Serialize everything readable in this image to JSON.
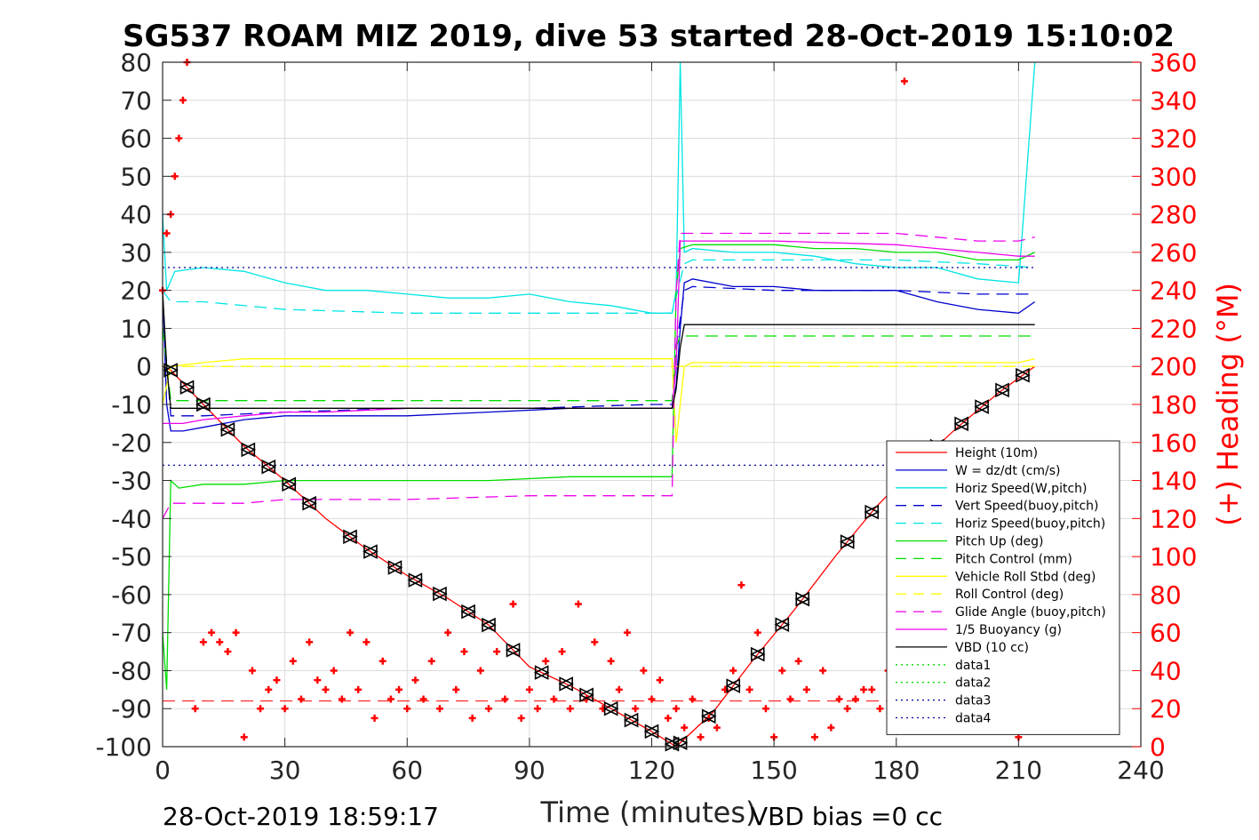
{
  "chart_data": {
    "type": "line",
    "title": "SG537 ROAM MIZ 2019, dive 53 started 28-Oct-2019 15:10:02",
    "xlabel": "Time (minutes)",
    "ylabel": "",
    "ylabel_right": "(+) Heading (°M)",
    "xlim": [
      0,
      240
    ],
    "ylim": [
      -100,
      80
    ],
    "ylim_right": [
      0,
      360
    ],
    "xticks": [
      "0",
      "30",
      "60",
      "90",
      "120",
      "150",
      "180",
      "210",
      "240"
    ],
    "yticks": [
      "80",
      "70",
      "60",
      "50",
      "40",
      "30",
      "20",
      "10",
      "0",
      "-10",
      "-20",
      "-30",
      "-40",
      "-50",
      "-60",
      "-70",
      "-80",
      "-90",
      "-100"
    ],
    "yticks_right": [
      "360",
      "340",
      "320",
      "300",
      "280",
      "260",
      "240",
      "220",
      "200",
      "180",
      "160",
      "140",
      "120",
      "100",
      "80",
      "60",
      "40",
      "20",
      "0"
    ],
    "grid": true,
    "legend_position": "lower-right",
    "footer_left": "28-Oct-2019 18:59:17",
    "footer_right": "VBD bias =0 cc",
    "colors": {
      "red": "#ff0000",
      "blue": "#0000cc",
      "cyan": "#00e5e5",
      "green": "#00dd00",
      "yellow": "#ffff00",
      "magenta": "#ee00ee",
      "black": "#000000",
      "navy": "#000099"
    },
    "series": [
      {
        "name": "Height (10m)",
        "color": "#ff0000",
        "style": "solid",
        "x": [
          0,
          2,
          10,
          20,
          30,
          40,
          50,
          60,
          70,
          80,
          90,
          100,
          110,
          120,
          126,
          135,
          145,
          155,
          165,
          175,
          185,
          195,
          205,
          214
        ],
        "y": [
          0,
          -1,
          -10,
          -21,
          -30,
          -40,
          -48,
          -55,
          -61,
          -68,
          -79,
          -84,
          -90,
          -96,
          -100,
          -91,
          -77,
          -64,
          -50,
          -37,
          -26,
          -16,
          -7,
          0
        ]
      },
      {
        "name": "W = dz/dt (cm/s)",
        "color": "#0000cc",
        "style": "solid",
        "x": [
          0,
          1,
          2,
          5,
          10,
          20,
          30,
          40,
          60,
          80,
          100,
          120,
          125,
          126,
          127,
          128,
          130,
          140,
          150,
          160,
          170,
          180,
          190,
          200,
          210,
          214
        ],
        "y": [
          20,
          -10,
          -17,
          -17,
          -16,
          -14,
          -13,
          -13,
          -13,
          -12,
          -11,
          -11,
          -11,
          -5,
          10,
          22,
          23,
          21,
          21,
          20,
          20,
          20,
          17,
          15,
          14,
          17
        ]
      },
      {
        "name": "Horiz Speed(W,pitch)",
        "color": "#00e5e5",
        "style": "solid",
        "x": [
          0,
          1,
          3,
          10,
          20,
          30,
          40,
          50,
          60,
          70,
          80,
          90,
          100,
          110,
          120,
          125,
          126,
          127,
          128,
          130,
          140,
          150,
          160,
          170,
          180,
          190,
          200,
          210,
          214
        ],
        "y": [
          40,
          20,
          25,
          26,
          25,
          22,
          20,
          20,
          19,
          18,
          18,
          19,
          17,
          16,
          14,
          14,
          20,
          80,
          30,
          31,
          30,
          30,
          29,
          27,
          26,
          26,
          23,
          22,
          80
        ]
      },
      {
        "name": "Vert Speed(buoy,pitch)",
        "color": "#0000cc",
        "style": "dashed",
        "x": [
          0,
          2,
          10,
          30,
          60,
          90,
          120,
          125,
          126,
          128,
          130,
          150,
          180,
          200,
          214
        ],
        "y": [
          15,
          -13,
          -13,
          -12,
          -11,
          -11,
          -10,
          -10,
          5,
          20,
          21,
          20,
          20,
          19,
          19
        ]
      },
      {
        "name": "Horiz Speed(buoy,pitch)",
        "color": "#00e5e5",
        "style": "dashed",
        "x": [
          0,
          2,
          10,
          30,
          60,
          90,
          120,
          125,
          128,
          130,
          150,
          180,
          200,
          214
        ],
        "y": [
          20,
          17,
          17,
          15,
          14,
          14,
          14,
          14,
          27,
          28,
          28,
          28,
          27,
          26
        ]
      },
      {
        "name": "Pitch Up (deg)",
        "color": "#00dd00",
        "style": "solid",
        "x": [
          0,
          1,
          2,
          4,
          10,
          20,
          30,
          40,
          60,
          80,
          100,
          120,
          125,
          126,
          127,
          130,
          140,
          150,
          160,
          170,
          180,
          190,
          200,
          210,
          214
        ],
        "y": [
          -70,
          -85,
          -30,
          -32,
          -31,
          -31,
          -30,
          -30,
          -30,
          -30,
          -29,
          -29,
          -29,
          20,
          31,
          32,
          32,
          32,
          31,
          31,
          30,
          30,
          28,
          28,
          30
        ]
      },
      {
        "name": "Pitch Control (mm)",
        "color": "#00dd00",
        "style": "dashed",
        "x": [
          0,
          2,
          30,
          60,
          90,
          125,
          126,
          127,
          130,
          150,
          180,
          214
        ],
        "y": [
          10,
          -9,
          -9,
          -9,
          -9,
          -9,
          5,
          8,
          8,
          8,
          8,
          8
        ]
      },
      {
        "name": "Vehicle Roll Stbd (deg)",
        "color": "#ffff00",
        "style": "solid",
        "x": [
          0,
          2,
          10,
          20,
          30,
          40,
          50,
          60,
          70,
          80,
          90,
          100,
          110,
          120,
          125,
          126,
          128,
          130,
          140,
          150,
          160,
          170,
          180,
          190,
          200,
          210,
          214
        ],
        "y": [
          -10,
          0,
          1,
          2,
          2,
          2,
          2,
          2,
          2,
          2,
          2,
          2,
          2,
          2,
          2,
          -20,
          0,
          1,
          1,
          1,
          1,
          1,
          1,
          1,
          1,
          1,
          2
        ]
      },
      {
        "name": "Roll Control (deg)",
        "color": "#ffff00",
        "style": "dashed",
        "x": [
          0,
          2,
          30,
          60,
          90,
          125,
          126,
          130,
          160,
          190,
          214
        ],
        "y": [
          0,
          0,
          0,
          0,
          0,
          0,
          0,
          0,
          0,
          0,
          0
        ]
      },
      {
        "name": "Glide Angle (buoy,pitch)",
        "color": "#ee00ee",
        "style": "dashed",
        "x": [
          0,
          2,
          4,
          10,
          20,
          30,
          40,
          60,
          90,
          120,
          125,
          126,
          127,
          130,
          150,
          180,
          190,
          200,
          210,
          214
        ],
        "y": [
          -40,
          -36,
          -36,
          -36,
          -36,
          -35,
          -35,
          -35,
          -34,
          -34,
          -34,
          20,
          35,
          35,
          35,
          35,
          34,
          33,
          33,
          34
        ]
      },
      {
        "name": "1/5 Buoyancy (g)",
        "color": "#ee00ee",
        "style": "solid",
        "x": [
          0,
          2,
          5,
          10,
          20,
          30,
          40,
          60,
          90,
          120,
          125,
          126,
          127,
          130,
          150,
          180,
          190,
          200,
          210,
          214
        ],
        "y": [
          -15,
          -15,
          -15,
          -14,
          -13,
          -12,
          -12,
          -11,
          -11,
          -11,
          -11,
          0,
          33,
          33,
          33,
          32,
          31,
          30,
          29,
          29
        ]
      },
      {
        "name": "VBD (10 cc)",
        "color": "#000000",
        "style": "solid",
        "x": [
          0,
          1,
          2,
          3,
          10,
          30,
          60,
          90,
          120,
          125,
          126,
          127,
          128,
          130,
          150,
          180,
          214
        ],
        "y": [
          20,
          0,
          -11,
          -11,
          -11,
          -11,
          -11,
          -11,
          -11,
          -11,
          -6,
          5,
          11,
          11,
          11,
          11,
          11
        ]
      },
      {
        "name": "data1",
        "color": "#00dd00",
        "style": "dotted",
        "x": [],
        "y": []
      },
      {
        "name": "data2",
        "color": "#00dd00",
        "style": "dotted",
        "x": [],
        "y": []
      },
      {
        "name": "data3",
        "color": "#000099",
        "style": "dotted",
        "x": [
          0,
          214
        ],
        "y": [
          26,
          26
        ]
      },
      {
        "name": "data4",
        "color": "#000099",
        "style": "dotted",
        "x": [
          0,
          214
        ],
        "y": [
          -26,
          -26
        ]
      }
    ],
    "markers": {
      "down_x": [
        2,
        6,
        10,
        16,
        21,
        26,
        31,
        36,
        46,
        51,
        57,
        62,
        68,
        75,
        80,
        86,
        93,
        99,
        104,
        110,
        115,
        120,
        125
      ],
      "up_x": [
        127,
        134,
        140,
        146,
        152,
        157,
        168,
        174,
        184,
        190,
        196,
        201,
        206,
        211
      ]
    },
    "heading": {
      "name": "(+) Heading (°M)",
      "color": "#ff0000",
      "mean_line": 24,
      "x": [
        0,
        1,
        2,
        3,
        4,
        5,
        6,
        8,
        10,
        12,
        14,
        16,
        18,
        20,
        22,
        24,
        26,
        28,
        30,
        32,
        34,
        36,
        38,
        40,
        42,
        44,
        46,
        48,
        50,
        52,
        54,
        56,
        58,
        60,
        62,
        64,
        66,
        68,
        70,
        72,
        74,
        76,
        78,
        80,
        82,
        84,
        86,
        88,
        90,
        92,
        94,
        96,
        98,
        100,
        102,
        104,
        106,
        108,
        110,
        112,
        114,
        116,
        118,
        120,
        122,
        124,
        126,
        128,
        130,
        132,
        134,
        136,
        138,
        140,
        142,
        144,
        146,
        148,
        150,
        152,
        154,
        156,
        158,
        160,
        162,
        164,
        166,
        168,
        170,
        172,
        174,
        176,
        178,
        180,
        182,
        184,
        186,
        188,
        190,
        192,
        194,
        196,
        198,
        200,
        202,
        204,
        206,
        208,
        210,
        212,
        214
      ],
      "y": [
        240,
        270,
        280,
        300,
        320,
        340,
        360,
        20,
        55,
        60,
        55,
        50,
        60,
        5,
        40,
        20,
        30,
        35,
        20,
        45,
        25,
        55,
        35,
        30,
        40,
        25,
        60,
        30,
        55,
        15,
        45,
        25,
        30,
        20,
        35,
        25,
        45,
        20,
        60,
        30,
        50,
        15,
        40,
        20,
        50,
        25,
        75,
        15,
        30,
        20,
        45,
        25,
        50,
        20,
        75,
        25,
        55,
        20,
        45,
        30,
        60,
        20,
        40,
        25,
        35,
        15,
        20,
        10,
        25,
        5,
        15,
        10,
        30,
        40,
        85,
        30,
        60,
        20,
        5,
        40,
        25,
        45,
        30,
        5,
        40,
        10,
        25,
        20,
        25,
        30,
        30,
        20,
        40,
        35,
        350,
        40,
        30,
        15,
        25,
        20,
        30,
        10,
        20,
        25,
        15,
        20,
        40,
        25,
        5,
        20,
        30
      ]
    }
  }
}
